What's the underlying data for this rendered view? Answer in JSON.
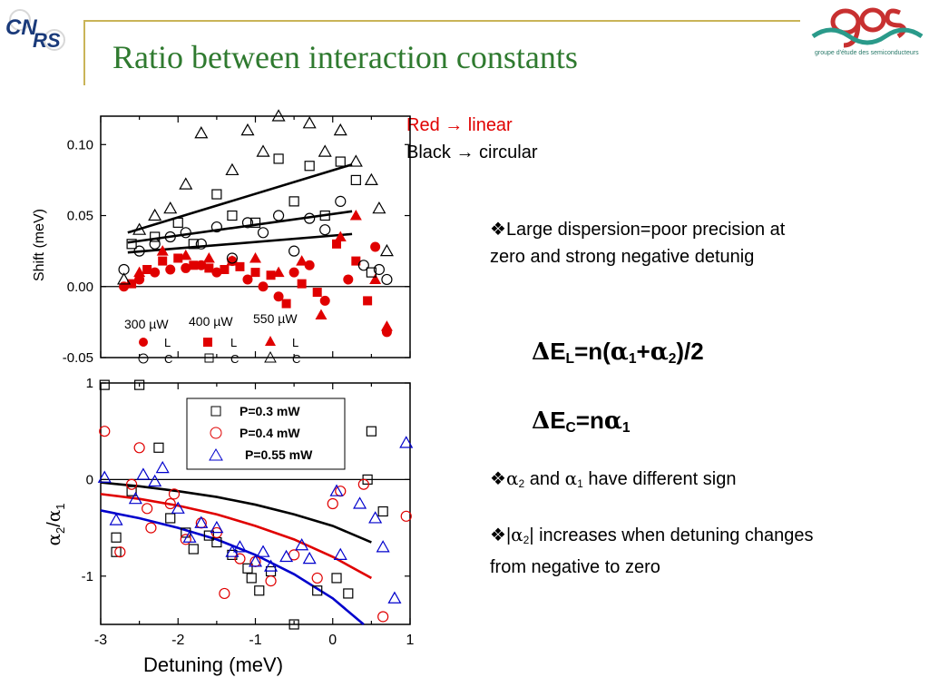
{
  "slide": {
    "title": "Ratio between interaction constants",
    "legend_red": "Red → linear",
    "legend_black": "Black → circular",
    "bullet_marker": "❖",
    "bullet1": "Large dispersion=poor precision at zero and strong negative detunig",
    "bullet2": {
      "a2": "α",
      "a2_sub": "2",
      "and": " and ",
      "a1": "α",
      "a1_sub": "1",
      "rest": " have different sign"
    },
    "bullet3": {
      "pre": "|",
      "a": "α",
      "a_sub": "2",
      "rest": "| increases when detuning changes from negative to zero"
    },
    "eq1": {
      "delta": "Δ",
      "E": "E",
      "sub": "L",
      "mid": "=n(",
      "a1": "α",
      "s1": "1",
      "plus": "+",
      "a2": "α",
      "s2": "2",
      "end": ")/2"
    },
    "eq2": {
      "delta": "Δ",
      "E": "E",
      "sub": "C",
      "mid": "=n",
      "a1": "α",
      "s1": "1"
    },
    "logos": {
      "left": "CNRS",
      "right": "ges",
      "right_caption": "groupe d'étude des semiconducteurs"
    },
    "colors": {
      "title": "#2f7a2f",
      "accent_line": "#c9b458",
      "red": "#e00000",
      "blue": "#0000cc"
    }
  },
  "chart_data": [
    {
      "type": "scatter",
      "ylabel": "Shift (meV)",
      "xlim": [
        -3,
        1
      ],
      "ylim": [
        -0.05,
        0.12
      ],
      "yticks": [
        -0.05,
        0.0,
        0.05,
        0.1
      ],
      "ytick_labels": [
        "-0.05",
        "0.00",
        "0.05",
        "0.10"
      ],
      "legend": {
        "powers": [
          "300 µW",
          "400 µW",
          "550 µW"
        ],
        "row_L": [
          "L",
          "L",
          "L"
        ],
        "row_C": [
          "C",
          "C",
          "C"
        ]
      },
      "series": [
        {
          "name": "300 µW L",
          "marker": "circle-filled",
          "color": "#e00000",
          "points": [
            [
              -2.7,
              0.0
            ],
            [
              -2.5,
              0.005
            ],
            [
              -2.3,
              0.01
            ],
            [
              -2.1,
              0.012
            ],
            [
              -1.9,
              0.013
            ],
            [
              -1.7,
              0.015
            ],
            [
              -1.5,
              0.01
            ],
            [
              -1.3,
              0.018
            ],
            [
              -1.1,
              0.005
            ],
            [
              -0.9,
              0.0
            ],
            [
              -0.7,
              -0.007
            ],
            [
              -0.5,
              0.01
            ],
            [
              -0.3,
              0.015
            ],
            [
              -0.1,
              -0.01
            ],
            [
              0.2,
              0.005
            ],
            [
              0.55,
              0.028
            ],
            [
              0.7,
              -0.032
            ]
          ]
        },
        {
          "name": "400 µW L",
          "marker": "square-filled",
          "color": "#e00000",
          "points": [
            [
              -2.6,
              0.002
            ],
            [
              -2.4,
              0.012
            ],
            [
              -2.2,
              0.018
            ],
            [
              -2.0,
              0.02
            ],
            [
              -1.8,
              0.015
            ],
            [
              -1.6,
              0.013
            ],
            [
              -1.4,
              0.012
            ],
            [
              -1.2,
              0.014
            ],
            [
              -1.0,
              0.01
            ],
            [
              -0.8,
              0.008
            ],
            [
              -0.6,
              -0.012
            ],
            [
              -0.4,
              0.002
            ],
            [
              -0.2,
              -0.004
            ],
            [
              0.05,
              0.03
            ],
            [
              0.3,
              0.018
            ],
            [
              0.45,
              -0.01
            ]
          ]
        },
        {
          "name": "550 µW L",
          "marker": "triangle-filled",
          "color": "#e00000",
          "points": [
            [
              -2.5,
              0.01
            ],
            [
              -2.2,
              0.025
            ],
            [
              -1.9,
              0.022
            ],
            [
              -1.6,
              0.02
            ],
            [
              -1.3,
              0.018
            ],
            [
              -1.0,
              0.02
            ],
            [
              -0.7,
              0.01
            ],
            [
              -0.4,
              0.018
            ],
            [
              -0.15,
              -0.02
            ],
            [
              0.1,
              0.035
            ],
            [
              0.3,
              0.05
            ],
            [
              0.55,
              0.005
            ],
            [
              0.7,
              -0.028
            ]
          ]
        },
        {
          "name": "300 µW C",
          "marker": "circle-open",
          "color": "#000000",
          "points": [
            [
              -2.7,
              0.012
            ],
            [
              -2.5,
              0.025
            ],
            [
              -2.3,
              0.03
            ],
            [
              -2.1,
              0.035
            ],
            [
              -1.9,
              0.038
            ],
            [
              -1.7,
              0.03
            ],
            [
              -1.5,
              0.042
            ],
            [
              -1.3,
              0.02
            ],
            [
              -1.1,
              0.045
            ],
            [
              -0.9,
              0.038
            ],
            [
              -0.7,
              0.05
            ],
            [
              -0.5,
              0.025
            ],
            [
              -0.3,
              0.048
            ],
            [
              -0.1,
              0.04
            ],
            [
              0.1,
              0.06
            ],
            [
              0.4,
              0.015
            ],
            [
              0.6,
              0.012
            ],
            [
              0.7,
              0.005
            ]
          ]
        },
        {
          "name": "400 µW C",
          "marker": "square-open",
          "color": "#000000",
          "points": [
            [
              -2.6,
              0.03
            ],
            [
              -2.3,
              0.035
            ],
            [
              -2.0,
              0.045
            ],
            [
              -1.8,
              0.03
            ],
            [
              -1.5,
              0.065
            ],
            [
              -1.3,
              0.05
            ],
            [
              -1.0,
              0.045
            ],
            [
              -0.7,
              0.09
            ],
            [
              -0.5,
              0.06
            ],
            [
              -0.3,
              0.085
            ],
            [
              -0.1,
              0.05
            ],
            [
              0.1,
              0.088
            ],
            [
              0.3,
              0.075
            ],
            [
              0.5,
              0.01
            ]
          ]
        },
        {
          "name": "550 µW C",
          "marker": "triangle-open",
          "color": "#000000",
          "points": [
            [
              -2.7,
              0.005
            ],
            [
              -2.5,
              0.04
            ],
            [
              -2.3,
              0.05
            ],
            [
              -2.1,
              0.055
            ],
            [
              -1.9,
              0.072
            ],
            [
              -1.7,
              0.108
            ],
            [
              -1.5,
              0.125
            ],
            [
              -1.3,
              0.082
            ],
            [
              -1.1,
              0.11
            ],
            [
              -0.9,
              0.095
            ],
            [
              -0.7,
              0.12
            ],
            [
              -0.5,
              0.13
            ],
            [
              -0.3,
              0.115
            ],
            [
              -0.1,
              0.095
            ],
            [
              0.1,
              0.11
            ],
            [
              0.3,
              0.088
            ],
            [
              0.5,
              0.075
            ],
            [
              0.6,
              0.055
            ],
            [
              0.7,
              0.025
            ]
          ]
        }
      ],
      "fit_lines": [
        {
          "color": "#000000",
          "points": [
            [
              -2.65,
              0.038
            ],
            [
              0.25,
              0.086
            ]
          ]
        },
        {
          "color": "#000000",
          "points": [
            [
              -2.65,
              0.031
            ],
            [
              0.25,
              0.053
            ]
          ]
        },
        {
          "color": "#000000",
          "points": [
            [
              -2.65,
              0.024
            ],
            [
              0.25,
              0.037
            ]
          ]
        }
      ]
    },
    {
      "type": "scatter",
      "xlabel": "Detuning (meV)",
      "ylabel": {
        "a1": "α",
        "s1": "2",
        "slash": "/",
        "a2": "α",
        "s2": "1"
      },
      "xlim": [
        -3,
        1
      ],
      "ylim": [
        -1.5,
        1.0
      ],
      "xticks": [
        -3,
        -2,
        -1,
        0,
        1
      ],
      "xtick_labels": [
        "-3",
        "-2",
        "-1",
        "0",
        "1"
      ],
      "yticks": [
        1,
        0,
        -1
      ],
      "ytick_labels": [
        "1",
        "0",
        "-1"
      ],
      "legend": {
        "labels": [
          "P=0.3 mW",
          "P=0.4 mW",
          "P=0.55 mW"
        ],
        "placement": "top-right"
      },
      "series": [
        {
          "name": "P=0.3 mW",
          "marker": "square-open",
          "color": "#000000",
          "points": [
            [
              -2.95,
              0.98
            ],
            [
              -2.5,
              0.98
            ],
            [
              -2.25,
              0.33
            ],
            [
              -2.8,
              -0.6
            ],
            [
              -2.8,
              -0.75
            ],
            [
              -2.6,
              -0.12
            ],
            [
              -2.1,
              -0.4
            ],
            [
              -1.9,
              -0.55
            ],
            [
              -1.8,
              -0.72
            ],
            [
              -1.6,
              -0.58
            ],
            [
              -1.5,
              -0.65
            ],
            [
              -1.3,
              -0.78
            ],
            [
              -1.1,
              -0.92
            ],
            [
              -1.05,
              -1.02
            ],
            [
              -0.95,
              -1.15
            ],
            [
              -0.8,
              -0.95
            ],
            [
              -0.5,
              -1.5
            ],
            [
              -0.2,
              -1.15
            ],
            [
              0.05,
              -1.02
            ],
            [
              0.2,
              -1.18
            ],
            [
              0.45,
              0.0
            ],
            [
              0.5,
              0.5
            ],
            [
              0.65,
              -0.33
            ]
          ]
        },
        {
          "name": "P=0.4 mW",
          "marker": "circle-open",
          "color": "#e00000",
          "points": [
            [
              -2.95,
              0.5
            ],
            [
              -2.5,
              0.33
            ],
            [
              -2.75,
              -0.75
            ],
            [
              -2.6,
              -0.05
            ],
            [
              -2.4,
              -0.3
            ],
            [
              -2.35,
              -0.5
            ],
            [
              -2.05,
              -0.15
            ],
            [
              -2.1,
              -0.25
            ],
            [
              -1.9,
              -0.62
            ],
            [
              -1.7,
              -0.45
            ],
            [
              -1.5,
              -0.55
            ],
            [
              -1.4,
              -1.18
            ],
            [
              -1.2,
              -0.82
            ],
            [
              -1.0,
              -0.85
            ],
            [
              -0.8,
              -1.05
            ],
            [
              -0.5,
              -0.78
            ],
            [
              -0.2,
              -1.02
            ],
            [
              0.0,
              -0.25
            ],
            [
              0.1,
              -0.12
            ],
            [
              0.4,
              -0.05
            ],
            [
              0.65,
              -1.42
            ],
            [
              0.95,
              -0.38
            ]
          ]
        },
        {
          "name": "P=0.55 mW",
          "marker": "triangle-open",
          "color": "#0000cc",
          "points": [
            [
              -2.95,
              0.02
            ],
            [
              -2.8,
              -0.42
            ],
            [
              -2.55,
              -0.2
            ],
            [
              -2.45,
              0.05
            ],
            [
              -2.3,
              -0.02
            ],
            [
              -2.2,
              0.12
            ],
            [
              -2.0,
              -0.3
            ],
            [
              -1.85,
              -0.6
            ],
            [
              -1.7,
              -0.45
            ],
            [
              -1.5,
              -0.5
            ],
            [
              -1.3,
              -0.75
            ],
            [
              -1.2,
              -0.7
            ],
            [
              -1.0,
              -0.85
            ],
            [
              -0.9,
              -0.75
            ],
            [
              -0.8,
              -0.9
            ],
            [
              -0.6,
              -0.8
            ],
            [
              -0.4,
              -0.68
            ],
            [
              -0.3,
              -0.82
            ],
            [
              0.1,
              -0.78
            ],
            [
              0.05,
              -0.12
            ],
            [
              0.35,
              -0.25
            ],
            [
              0.55,
              -0.4
            ],
            [
              0.65,
              -0.7
            ],
            [
              0.8,
              -1.23
            ],
            [
              0.95,
              0.38
            ]
          ]
        }
      ],
      "fit_curves": [
        {
          "color": "#000000",
          "points": [
            [
              -3.0,
              -0.03
            ],
            [
              -2.5,
              -0.07
            ],
            [
              -2.0,
              -0.12
            ],
            [
              -1.5,
              -0.18
            ],
            [
              -1.0,
              -0.26
            ],
            [
              -0.5,
              -0.36
            ],
            [
              0.0,
              -0.48
            ],
            [
              0.5,
              -0.65
            ]
          ]
        },
        {
          "color": "#e00000",
          "points": [
            [
              -3.0,
              -0.15
            ],
            [
              -2.5,
              -0.2
            ],
            [
              -2.0,
              -0.27
            ],
            [
              -1.5,
              -0.36
            ],
            [
              -1.0,
              -0.48
            ],
            [
              -0.5,
              -0.62
            ],
            [
              0.0,
              -0.8
            ],
            [
              0.5,
              -1.02
            ]
          ]
        },
        {
          "color": "#0000cc",
          "points": [
            [
              -3.0,
              -0.32
            ],
            [
              -2.5,
              -0.4
            ],
            [
              -2.0,
              -0.5
            ],
            [
              -1.5,
              -0.62
            ],
            [
              -1.0,
              -0.78
            ],
            [
              -0.5,
              -0.98
            ],
            [
              0.0,
              -1.23
            ],
            [
              0.4,
              -1.5
            ]
          ]
        }
      ]
    }
  ]
}
